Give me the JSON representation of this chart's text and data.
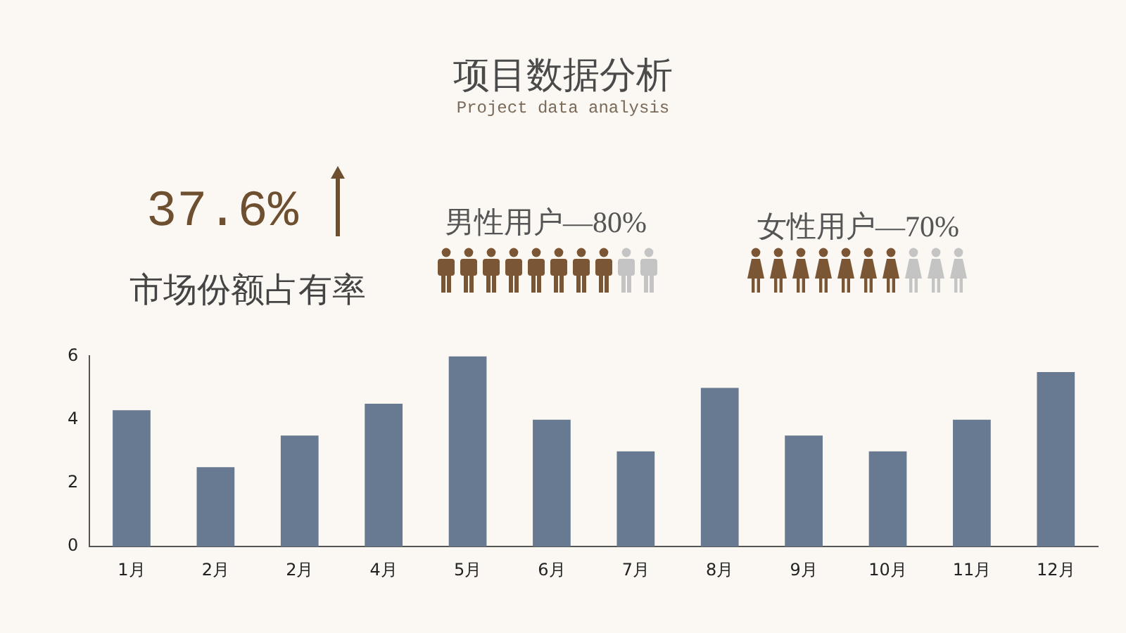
{
  "chart_data": {
    "type": "bar",
    "title": "项目数据分析",
    "subtitle": "Project data analysis",
    "annotations": [
      "37.6%",
      "市场份额占有率",
      "男性用户—80%",
      "女性用户—70%"
    ],
    "categories": [
      "1月",
      "2月",
      "2月",
      "4月",
      "5月",
      "6月",
      "7月",
      "8月",
      "9月",
      "10月",
      "11月",
      "12月"
    ],
    "values": [
      4.3,
      2.5,
      3.5,
      4.5,
      6,
      4,
      3,
      5,
      3.5,
      3,
      4,
      5.5
    ],
    "color": "#687a91",
    "ylim": [
      0,
      6
    ],
    "yticks": [
      0,
      2,
      4,
      6
    ],
    "grid": false
  }
}
